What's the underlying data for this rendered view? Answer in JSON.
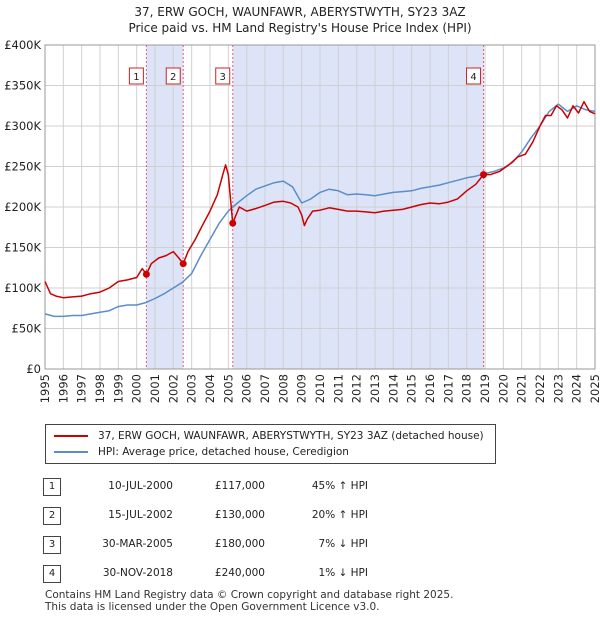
{
  "chart_data": {
    "type": "line",
    "title": "37, ERW GOCH, WAUNFAWR, ABERYSTWYTH, SY23 3AZ",
    "subtitle": "Price paid vs. HM Land Registry's House Price Index (HPI)",
    "xlabel": "",
    "ylabel": "",
    "xlim": [
      1995.0,
      2025.0
    ],
    "ylim": [
      0,
      400000
    ],
    "y_ticks": [
      {
        "value": 0,
        "label": "£0"
      },
      {
        "value": 50000,
        "label": "£50K"
      },
      {
        "value": 100000,
        "label": "£100K"
      },
      {
        "value": 150000,
        "label": "£150K"
      },
      {
        "value": 200000,
        "label": "£200K"
      },
      {
        "value": 250000,
        "label": "£250K"
      },
      {
        "value": 300000,
        "label": "£300K"
      },
      {
        "value": 350000,
        "label": "£350K"
      },
      {
        "value": 400000,
        "label": "£400K"
      }
    ],
    "x_ticks": [
      "1995",
      "1996",
      "1997",
      "1998",
      "1999",
      "2000",
      "2001",
      "2002",
      "2003",
      "2004",
      "2005",
      "2006",
      "2007",
      "2008",
      "2009",
      "2010",
      "2011",
      "2012",
      "2013",
      "2014",
      "2015",
      "2016",
      "2017",
      "2018",
      "2019",
      "2020",
      "2021",
      "2022",
      "2023",
      "2024",
      "2025"
    ],
    "grid": true,
    "series": [
      {
        "name": "37, ERW GOCH, WAUNFAWR, ABERYSTWYTH, SY23 3AZ (detached house)",
        "color": "#cc0000",
        "x": [
          1995.0,
          1995.3,
          1995.6,
          1996.0,
          1996.5,
          1997.0,
          1997.5,
          1998.0,
          1998.5,
          1999.0,
          1999.5,
          2000.0,
          2000.3,
          2000.53,
          2000.8,
          2001.2,
          2001.6,
          2002.0,
          2002.3,
          2002.54,
          2002.8,
          2003.2,
          2003.6,
          2004.0,
          2004.4,
          2004.7,
          2004.85,
          2005.0,
          2005.24,
          2005.6,
          2006.0,
          2006.5,
          2007.0,
          2007.5,
          2008.0,
          2008.4,
          2008.8,
          2009.0,
          2009.15,
          2009.3,
          2009.6,
          2010.0,
          2010.5,
          2011.0,
          2011.5,
          2012.0,
          2012.5,
          2013.0,
          2013.5,
          2014.0,
          2014.5,
          2015.0,
          2015.5,
          2016.0,
          2016.5,
          2017.0,
          2017.5,
          2018.0,
          2018.5,
          2018.92,
          2019.3,
          2019.8,
          2020.3,
          2020.8,
          2021.2,
          2021.6,
          2022.0,
          2022.3,
          2022.6,
          2022.9,
          2023.2,
          2023.5,
          2023.8,
          2024.1,
          2024.4,
          2024.7,
          2025.0
        ],
        "values": [
          108000,
          93000,
          90000,
          88000,
          89000,
          90000,
          93000,
          95000,
          100000,
          108000,
          110000,
          113000,
          124000,
          117000,
          130000,
          137000,
          140000,
          145000,
          137000,
          130000,
          145000,
          160000,
          178000,
          195000,
          215000,
          240000,
          252000,
          240000,
          180000,
          200000,
          195000,
          198000,
          202000,
          206000,
          207000,
          205000,
          200000,
          190000,
          177000,
          185000,
          195000,
          196000,
          199000,
          197000,
          195000,
          195000,
          194000,
          193000,
          195000,
          196000,
          197000,
          200000,
          203000,
          205000,
          204000,
          206000,
          210000,
          220000,
          228000,
          240000,
          240000,
          244000,
          252000,
          262000,
          265000,
          280000,
          300000,
          313000,
          313000,
          325000,
          320000,
          310000,
          325000,
          316000,
          330000,
          318000,
          315000
        ],
        "sale_markers": [
          {
            "x": 2000.53,
            "value": 117000
          },
          {
            "x": 2002.54,
            "value": 130000
          },
          {
            "x": 2005.24,
            "value": 180000
          },
          {
            "x": 2018.92,
            "value": 240000
          }
        ]
      },
      {
        "name": "HPI: Average price, detached house, Ceredigion",
        "color": "#5b8ec8",
        "x": [
          1995.0,
          1995.5,
          1996.0,
          1996.5,
          1997.0,
          1997.5,
          1998.0,
          1998.5,
          1999.0,
          1999.5,
          2000.0,
          2000.5,
          2001.0,
          2001.5,
          2002.0,
          2002.5,
          2003.0,
          2003.5,
          2004.0,
          2004.5,
          2005.0,
          2005.5,
          2006.0,
          2006.5,
          2007.0,
          2007.5,
          2008.0,
          2008.5,
          2009.0,
          2009.5,
          2010.0,
          2010.5,
          2011.0,
          2011.5,
          2012.0,
          2012.5,
          2013.0,
          2013.5,
          2014.0,
          2014.5,
          2015.0,
          2015.5,
          2016.0,
          2016.5,
          2017.0,
          2017.5,
          2018.0,
          2018.5,
          2018.92,
          2019.5,
          2020.0,
          2020.5,
          2021.0,
          2021.5,
          2022.0,
          2022.5,
          2023.0,
          2023.5,
          2024.0,
          2024.5,
          2025.0
        ],
        "values": [
          68000,
          65000,
          65000,
          66000,
          66000,
          68000,
          70000,
          72000,
          77000,
          79000,
          79000,
          82000,
          87000,
          93000,
          100000,
          107000,
          118000,
          140000,
          160000,
          180000,
          195000,
          205000,
          214000,
          222000,
          226000,
          230000,
          232000,
          225000,
          205000,
          210000,
          218000,
          222000,
          220000,
          215000,
          216000,
          215000,
          214000,
          216000,
          218000,
          219000,
          220000,
          223000,
          225000,
          227000,
          230000,
          233000,
          236000,
          238000,
          241000,
          244000,
          248000,
          255000,
          268000,
          285000,
          300000,
          318000,
          327000,
          318000,
          325000,
          320000,
          318000
        ]
      }
    ],
    "vlines": [
      2000.53,
      2002.54,
      2005.24,
      2018.92
    ],
    "marker_labels": [
      "1",
      "2",
      "3",
      "4"
    ],
    "shaded_ranges": [
      [
        2000.53,
        2002.54
      ],
      [
        2005.24,
        2018.92
      ]
    ],
    "shade_color": "#dde4f8",
    "legend_position": "below"
  },
  "legend": [
    {
      "label": "37, ERW GOCH, WAUNFAWR, ABERYSTWYTH, SY23 3AZ (detached house)",
      "color": "#cc0000"
    },
    {
      "label": "HPI: Average price, detached house, Ceredigion",
      "color": "#5b8ec8"
    }
  ],
  "sales": [
    {
      "num": "1",
      "date": "10-JUL-2000",
      "price": "£117,000",
      "hpi": "45% ↑ HPI"
    },
    {
      "num": "2",
      "date": "15-JUL-2002",
      "price": "£130,000",
      "hpi": "20% ↑ HPI"
    },
    {
      "num": "3",
      "date": "30-MAR-2005",
      "price": "£180,000",
      "hpi": "7% ↓ HPI"
    },
    {
      "num": "4",
      "date": "30-NOV-2018",
      "price": "£240,000",
      "hpi": "1% ↓ HPI"
    }
  ],
  "footer": {
    "line1": "Contains HM Land Registry data © Crown copyright and database right 2025.",
    "line2": "This data is licensed under the Open Government Licence v3.0."
  }
}
